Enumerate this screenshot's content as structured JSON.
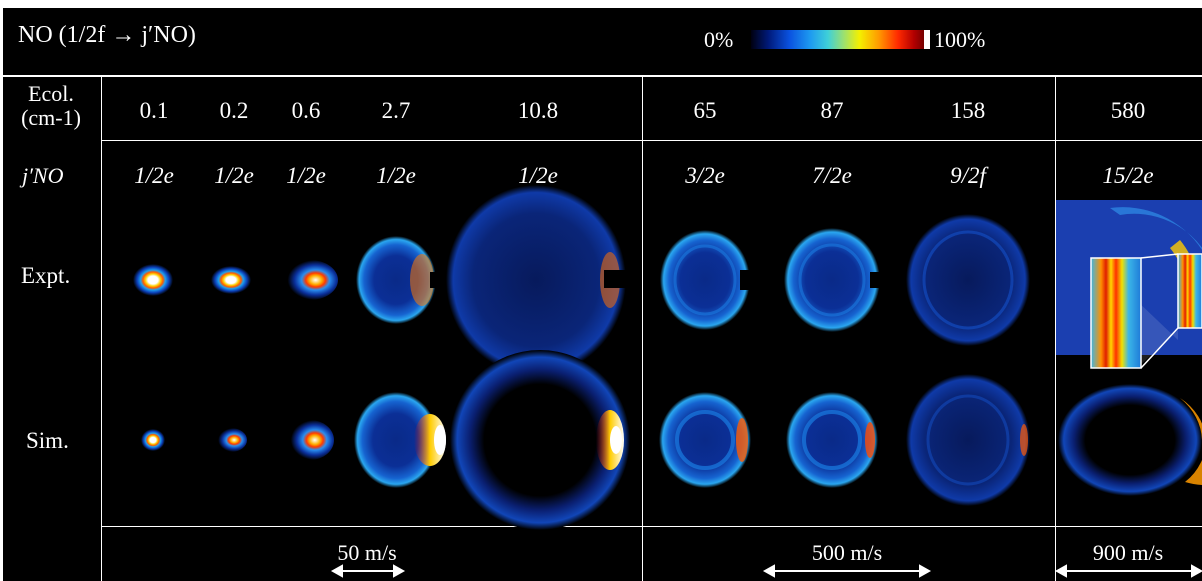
{
  "title": {
    "species": "NO",
    "transition": "(1/2f → j′NO)"
  },
  "colorbar": {
    "min_label": "0%",
    "max_label": "100%"
  },
  "row_labels": {
    "energy_line1": "Ecol.",
    "energy_line2": "(cm-1)",
    "j_label": "j′NO",
    "expt": "Expt.",
    "sim": "Sim."
  },
  "columns": [
    {
      "energy": "0.1",
      "state": "1/2e"
    },
    {
      "energy": "0.2",
      "state": "1/2e"
    },
    {
      "energy": "0.6",
      "state": "1/2e"
    },
    {
      "energy": "2.7",
      "state": "1/2e"
    },
    {
      "energy": "10.8",
      "state": "1/2e"
    },
    {
      "energy": "65",
      "state": "3/2e"
    },
    {
      "energy": "87",
      "state": "7/2e"
    },
    {
      "energy": "158",
      "state": "9/2f"
    },
    {
      "energy": "580",
      "state": "15/2e"
    }
  ],
  "scale_bars": [
    "50 m/s",
    "500 m/s",
    "900 m/s"
  ],
  "colors": {
    "background": "#000000",
    "text": "#ffffff",
    "colormap": "jet-like dark blue to dark red"
  }
}
